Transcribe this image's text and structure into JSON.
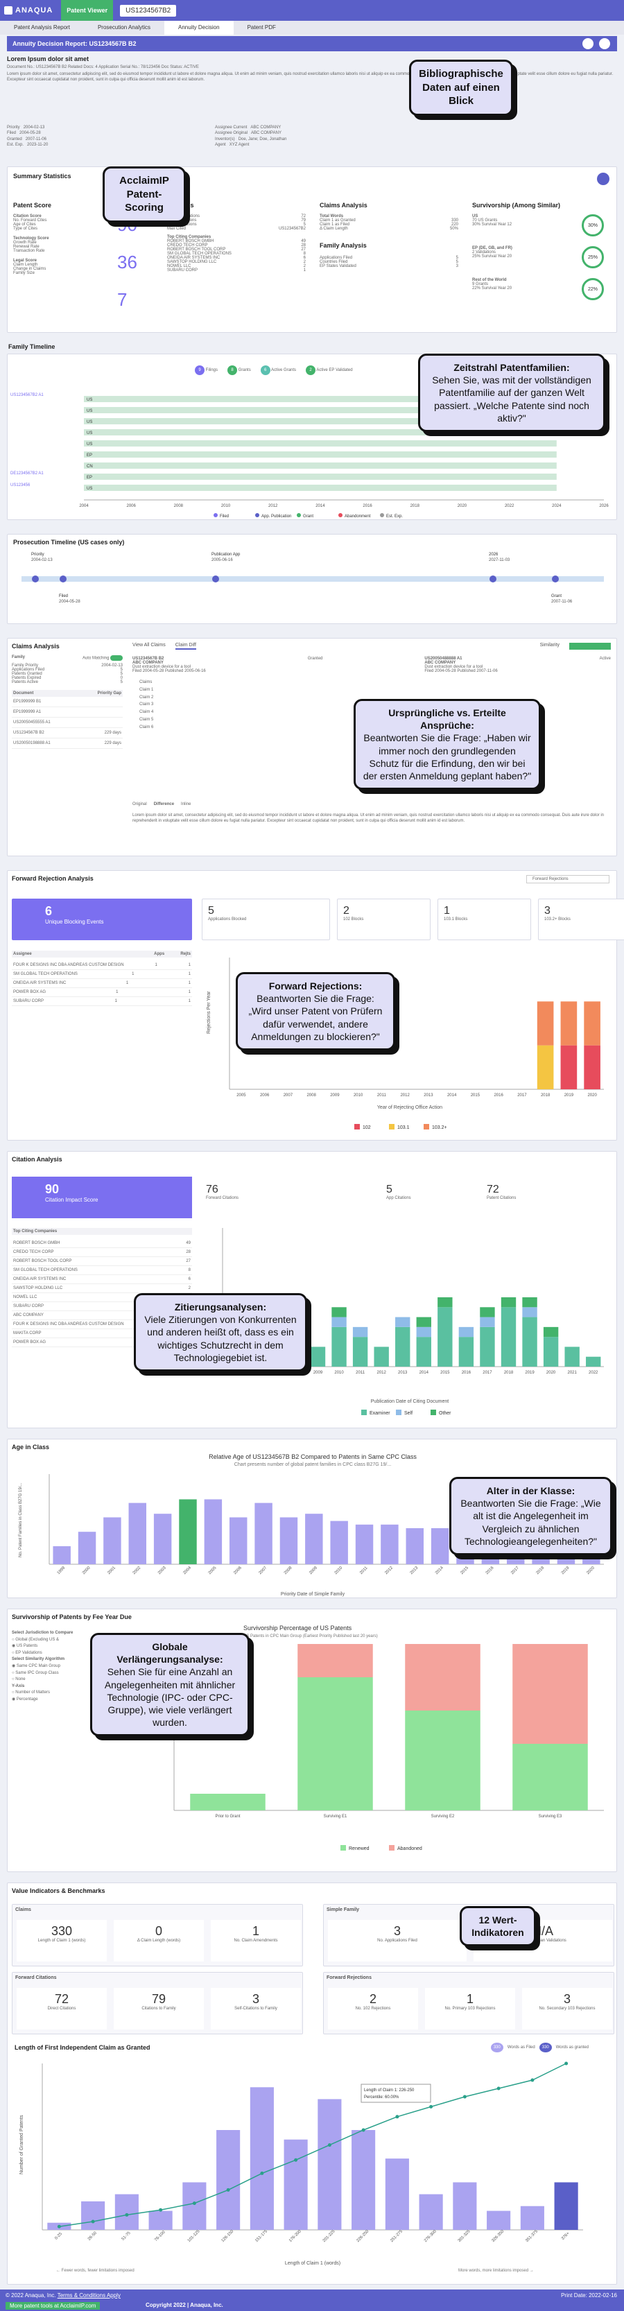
{
  "app": {
    "brand": "ANAQUA",
    "viewer": "Patent Viewer",
    "patent_number": "US1234567B2"
  },
  "tabs": [
    "Patent Analysis Report",
    "Prosecution Analytics",
    "Annuity Decision",
    "Patent PDF"
  ],
  "decision_title": "Annuity Decision Report: US1234567B B2",
  "doc": {
    "title": "Lorem Ipsum dolor sit amet",
    "meta_line": "Document No.: US1234567B B2   Related Docs: 4   Application Serial No.: 78/123456   Doc Status: ACTIVE",
    "abstract": "Lorem ipsum dolor sit amet, consectetur adipiscing elit, sed do eiusmod tempor incididunt ut labore et dolore magna aliqua. Ut enim ad minim veniam, quis nostrud exercitation ullamco laboris nisi ut aliquip ex ea commodo consequat. Duis aute irure dolor in reprehenderit in voluptate velit esse cillum dolore eu fugiat nulla pariatur. Excepteur sint occaecat cupidatat non proident, sunt in culpa qui officia deserunt mollit anim id est laborum.",
    "dates": [
      [
        "Priority",
        "2004-02-13"
      ],
      [
        "Filed",
        "2004-05-28"
      ],
      [
        "Granted",
        "2007-11-06"
      ],
      [
        "Est. Exp.",
        "2023-11-20"
      ]
    ],
    "parties": [
      [
        "Assignee Current",
        "ABC COMPANY"
      ],
      [
        "Assignee Original",
        "ABC COMPANY"
      ],
      [
        "Inventor(s)",
        "Doe, Jane; Doe, Jonathan"
      ],
      [
        "Agent",
        "XYZ Agent"
      ]
    ]
  },
  "summary": {
    "title": "Summary Statistics",
    "patent_score": {
      "title": "Patent Score",
      "citation_label": "Citation Score",
      "citation_value": "90",
      "technology_label": "Technology Score",
      "technology_value": "36",
      "legal_label": "Legal Score",
      "legal_value": "7",
      "citation_rows": [
        "No. Forward Cites",
        "Age of Cites",
        "Type of Cites"
      ],
      "technology_rows": [
        "Growth Rate",
        "Renewal Rate",
        "Transaction Rate"
      ],
      "legal_rows": [
        "Claim Length",
        "Change in Claims",
        "Family Size"
      ]
    },
    "citations": {
      "title": "Citations",
      "rows": [
        [
          "Forward Citations",
          "72"
        ],
        [
          "Patent Citations",
          "79"
        ],
        [
          "Family Citations",
          "5"
        ],
        [
          "Max Cited",
          "US1234567B2"
        ]
      ],
      "top_title": "Top Citing Companies",
      "top": [
        [
          "ROBERT BOSCH GMBH",
          "49"
        ],
        [
          "CREDO TECH CORP",
          "28"
        ],
        [
          "ROBERT BOSCH TOOL CORP",
          "27"
        ],
        [
          "SM GLOBAL TECH OPERATIONS",
          "8"
        ],
        [
          "ONEIDA AIR SYSTEMS INC",
          "6"
        ],
        [
          "SAWSTOP HOLDING LLC",
          "2"
        ],
        [
          "NOWEL LLC",
          "2"
        ],
        [
          "SUBARU CORP",
          "1"
        ]
      ]
    },
    "claims": {
      "title": "Claims Analysis",
      "total_words_label": "Total Words",
      "rows": [
        [
          "Claim 1 as Granted",
          "330"
        ],
        [
          "Claim 1 as Filed",
          "220"
        ],
        [
          "Δ Claim Length",
          "50%"
        ]
      ],
      "family_title": "Family Analysis",
      "family_rows": [
        [
          "Applications Filed",
          "5"
        ],
        [
          "Countries Filed",
          "5"
        ],
        [
          "EP States Validated",
          "3"
        ]
      ]
    },
    "survivorship": {
      "title": "Survivorship (Among Similar)",
      "groups": [
        {
          "name": "US",
          "line1": "70 US Grants",
          "line2": "30% Survival Year 12",
          "pct": "30%"
        },
        {
          "name": "EP (DE, GB, and FR)",
          "line1": "2 Validations",
          "line2": "25% Survival Year 20",
          "pct": "25%"
        },
        {
          "name": "Rest of the World",
          "line1": "9 Grants",
          "line2": "22% Survival Year 20",
          "pct": "22%"
        }
      ]
    }
  },
  "family_timeline": {
    "title": "Family Timeline",
    "legend": [
      [
        "9",
        "Filings"
      ],
      [
        "8",
        "Grants"
      ],
      [
        "6",
        "Active Grants"
      ],
      [
        "2",
        "Active EP Validated"
      ]
    ],
    "years": [
      "2004",
      "2006",
      "2008",
      "2010",
      "2012",
      "2014",
      "2016",
      "2018",
      "2020",
      "2022",
      "2024",
      "2026"
    ],
    "rows": [
      "US",
      "US",
      "US",
      "US",
      "US",
      "EP",
      "CN",
      "EP",
      "US"
    ],
    "left_labels": [
      "US1234567B2 A1",
      "DE1234567B2 A1",
      "US123456"
    ],
    "bottom_legend": [
      "Filed",
      "App. Publication",
      "Grant",
      "Abandonment",
      "Est. Exp."
    ]
  },
  "prosecution": {
    "title": "Prosecution Timeline (US cases only)",
    "events": [
      [
        "Priority",
        "2004-02-13"
      ],
      [
        "Filed",
        "2004-05-28"
      ],
      [
        "Publication App",
        "2005-06-16"
      ],
      [
        "Grant",
        "2007-11-06"
      ],
      [
        "2026",
        "2027-11-03"
      ]
    ]
  },
  "claims_panel": {
    "title": "Claims Analysis",
    "family_label": "Family",
    "auto_matching": "Auto Matching",
    "family_rows": [
      [
        "Family Priority",
        "2004-02-13"
      ],
      [
        "Applications Filed",
        "5"
      ],
      [
        "Patents Granted",
        "5"
      ],
      [
        "Patents Expired",
        "0"
      ],
      [
        "Patents Active",
        "5"
      ]
    ],
    "doc_header": [
      "Document",
      "Priority Gap"
    ],
    "docs": [
      [
        "EP1999999 B1",
        ""
      ],
      [
        "EP1999999 A1",
        ""
      ],
      [
        "US20050455555 A1",
        ""
      ],
      [
        "US1234567B B2",
        "229 days"
      ],
      [
        "US20050198888 A1",
        "229 days"
      ]
    ],
    "view_tabs": [
      "View All Claims",
      "Claim Diff"
    ],
    "similarity": "Similarity",
    "granted": {
      "doc": "US1234567B B2",
      "company": "ABC COMPANY",
      "desc": "Dust extraction device for a tool",
      "filed": "2004-05-28",
      "published": "2005-06-16",
      "label": "Granted"
    },
    "filed": {
      "doc": "US20050488888 A1",
      "company": "ABC COMPANY",
      "desc": "Dust extraction device for a tool",
      "filed": "2004-05-28",
      "published": "2007-11-06",
      "label": "Active"
    },
    "claims": [
      "Claims",
      "Claim 1",
      "Claim 2",
      "Claim 3",
      "Claim 4",
      "Claim 5",
      "Claim 6"
    ],
    "diff_tabs": [
      "Original",
      "Difference",
      "Inline"
    ]
  },
  "forward_rejection": {
    "title": "Forward Rejection Analysis",
    "filter": "Forward Rejections",
    "blocking": {
      "value": "6",
      "label": "Unique Blocking Events"
    },
    "stats": [
      [
        "5",
        "Applications Blocked"
      ],
      [
        "2",
        "102 Blocks"
      ],
      [
        "1",
        "103.1 Blocks"
      ],
      [
        "3",
        "103.2+ Blocks"
      ]
    ],
    "assignees_header": [
      "Assignee",
      "Apps",
      "Rejts"
    ],
    "assignees": [
      [
        "FOUR K DESIGNS INC DBA ANDREAS CUSTOM DESIGN",
        "1",
        "1"
      ],
      [
        "SM GLOBAL TECH OPERATIONS",
        "1",
        "1"
      ],
      [
        "ONEIDA AIR SYSTEMS INC",
        "1",
        "1"
      ],
      [
        "POWER BOX AG",
        "1",
        "1"
      ],
      [
        "SUBARU CORP",
        "1",
        "1"
      ]
    ],
    "ylabel": "Rejections Per Year",
    "xlabel": "Year of Rejecting Office Action",
    "legend": [
      "102",
      "103.1",
      "103.2+"
    ]
  },
  "citation_analysis": {
    "title": "Citation Analysis",
    "impact": {
      "value": "90",
      "label": "Citation Impact Score"
    },
    "stats": [
      [
        "76",
        "Forward Citations"
      ],
      [
        "5",
        "App Citations"
      ],
      [
        "72",
        "Patent Citations"
      ]
    ],
    "top_title": "Top Citing Companies",
    "top": [
      [
        "ROBERT BOSCH GMBH",
        "49"
      ],
      [
        "CREDO TECH CORP",
        "28"
      ],
      [
        "ROBERT BOSCH TOOL CORP",
        "27"
      ],
      [
        "SM GLOBAL TECH OPERATIONS",
        "8"
      ],
      [
        "ONEIDA AIR SYSTEMS INC",
        "6"
      ],
      [
        "SAWSTOP HOLDING LLC",
        "2"
      ],
      [
        "NOWEL LLC",
        "2"
      ],
      [
        "SUBARU CORP",
        "1"
      ],
      [
        "ABC COMPANY",
        "1"
      ],
      [
        "FOUR K DESIGNS INC DBA ANDREAS CUSTOM DESIGN",
        "1"
      ],
      [
        "MAKITA CORP",
        "1"
      ],
      [
        "POWER BOX AG",
        "1"
      ]
    ],
    "xlabel": "Publication Date of Citing Document",
    "legend": [
      "Examiner",
      "Self",
      "Other"
    ]
  },
  "age_in_class": {
    "title": "Age in Class",
    "chart_title": "Relative Age of US1234567B B2 Compared to Patents in Same CPC Class",
    "chart_subtitle": "Chart presents number of global patent families in CPC class B27G 19/...",
    "ylabel": "No. Patent Families in Class B27G 19/...",
    "xlabel": "Priority Date of Simple Family"
  },
  "survivorship_panel": {
    "title": "Survivorship of Patents by Fee Year Due",
    "jurisdiction_label": "Select Jurisdiction to Compare",
    "jurisdiction_opts": [
      "Global (Excluding US &",
      "US Patents",
      "EP Validations"
    ],
    "algo_label": "Select Similarity Algorithm",
    "algo_opts": [
      "Same CPC Main Group",
      "Same IPC Group Class",
      "None"
    ],
    "yaxis_label": "Y-Axis",
    "yaxis_opts": [
      "Number of Matters",
      "Percentage"
    ],
    "chart_title": "Survivorship Percentage of US Patents",
    "chart_subtitle": "US Patents in CPC Main Group (Earliest Priority Published last 20 years)",
    "columns": [
      "Prior to Grant",
      "Surviving E1",
      "Surviving E2",
      "Surviving E3"
    ],
    "legend": [
      "Renewed",
      "Abandoned"
    ]
  },
  "value_indicators": {
    "title": "Value Indicators & Benchmarks",
    "claims": {
      "title": "Claims",
      "items": [
        [
          "330",
          "Length of Claim 1 (words)"
        ],
        [
          "0",
          "Δ Claim Length (words)"
        ],
        [
          "1",
          "No. Claim Amendments"
        ]
      ]
    },
    "simple_family": {
      "title": "Simple Family",
      "items": [
        [
          "3",
          "No. Applications Filed"
        ],
        [
          "N/A",
          "No. European Validations"
        ]
      ]
    },
    "forward_citations": {
      "title": "Forward Citations",
      "items": [
        [
          "72",
          "Direct Citations"
        ],
        [
          "79",
          "Citations to Family"
        ],
        [
          "3",
          "Self-Citations to Family"
        ]
      ]
    },
    "forward_rejections": {
      "title": "Forward Rejections",
      "items": [
        [
          "2",
          "No. 102 Rejections"
        ],
        [
          "1",
          "No. Primary 103 Rejections"
        ],
        [
          "3",
          "No. Secondary 103 Rejections"
        ]
      ]
    }
  },
  "length_chart": {
    "title": "Length of First Independent Claim as Granted",
    "badge1": "330",
    "badge1_label": "Words as Filed",
    "badge2": "330",
    "badge2_label": "Words as granted",
    "tooltip_line1": "Length of Claim 1:",
    "tooltip_val1": "226-250",
    "tooltip_line2": "Percentile:",
    "tooltip_val2": "60.00%",
    "xlabel": "Length of Claim 1 (words)",
    "ylabel": "Number of Granted Patents",
    "left_note": "← Fewer words, fewer limitations imposed",
    "right_note": "More words, more limitations imposed →"
  },
  "footer": {
    "copyright": "© 2022 Anaqua, Inc.",
    "terms": "Terms & Conditions Apply",
    "print_date": "Print Date: 2022-02-16",
    "more": "More patent tools at AcclaimIP.com",
    "copy2": "Copyright 2022 | Anaqua, Inc."
  },
  "callouts": {
    "biblio": "Bibliographische Daten auf einen Blick",
    "acclaim": "AcclaimIP Patent-Scoring",
    "family_title": "Zeitstrahl Patentfamilien:",
    "family_body": "Sehen Sie, was mit der vollständigen Patentfamilie auf der ganzen Welt passiert. „Welche Patente sind noch aktiv?\"",
    "claims_title": "Ursprüngliche vs. Erteilte Ansprüche:",
    "claims_body": "Beantworten Sie die Frage: „Haben wir immer noch den grundlegenden Schutz für die Erfindung, den wir bei der ersten Anmeldung geplant haben?\"",
    "fr_title": "Forward Rejections:",
    "fr_body": "Beantworten Sie die Frage: „Wird unser Patent von Prüfern dafür verwendet, andere Anmeldungen zu blockieren?\"",
    "cit_title": "Zitierungsanalysen:",
    "cit_body": "Viele Zitierungen von Konkurrenten und anderen heißt oft, dass es ein wichtiges Schutzrecht in dem Technologiegebiet ist.",
    "age_title": "Alter in der Klasse:",
    "age_body": "Beantworten Sie die Frage: „Wie alt ist die Angelegenheit im Vergleich zu ähnlichen Technologieangelegenheiten?\"",
    "glob_title": "Globale Verlängerungsanalyse:",
    "glob_body": "Sehen Sie für eine Anzahl an Angelegenheiten mit ähnlicher Technologie (IPC- oder CPC-Gruppe), wie viele verlängert wurden.",
    "twelve": "12 Wert-Indikatoren"
  },
  "chart_data": [
    {
      "type": "bar",
      "title": "",
      "categories": [
        "2005",
        "2006",
        "2007",
        "2008",
        "2009",
        "2010",
        "2011",
        "2012",
        "2013",
        "2014",
        "2015",
        "2016",
        "2017",
        "2018",
        "2019",
        "2020"
      ],
      "series": [
        {
          "name": "102",
          "values": [
            0,
            0,
            0,
            0,
            0,
            0,
            0,
            0,
            0,
            0,
            0,
            0,
            0,
            0,
            1,
            1
          ]
        },
        {
          "name": "103.1",
          "values": [
            0,
            0,
            0,
            0,
            0,
            0,
            0,
            0,
            0,
            0,
            0,
            0,
            0,
            1,
            0,
            0
          ]
        },
        {
          "name": "103.2+",
          "values": [
            0,
            0,
            0,
            0,
            0,
            0,
            0,
            0,
            0,
            0,
            0,
            0,
            0,
            1,
            1,
            1
          ]
        }
      ],
      "xlabel": "Year of Rejecting Office Action",
      "ylabel": "Rejections Per Year",
      "ylim": [
        0,
        3
      ]
    },
    {
      "type": "bar",
      "title": "",
      "categories": [
        "2005",
        "2006",
        "2007",
        "2008",
        "2009",
        "2010",
        "2011",
        "2012",
        "2013",
        "2014",
        "2015",
        "2016",
        "2017",
        "2018",
        "2019",
        "2020",
        "2021",
        "2022"
      ],
      "series": [
        {
          "name": "Examiner",
          "values": [
            0,
            0,
            2,
            1,
            2,
            4,
            3,
            2,
            4,
            3,
            6,
            3,
            4,
            6,
            5,
            3,
            2,
            1
          ]
        },
        {
          "name": "Self",
          "values": [
            0,
            0,
            0,
            0,
            0,
            1,
            1,
            0,
            1,
            1,
            0,
            1,
            1,
            0,
            1,
            0,
            0,
            0
          ]
        },
        {
          "name": "Other",
          "values": [
            0,
            0,
            1,
            0,
            0,
            1,
            0,
            0,
            0,
            1,
            1,
            0,
            1,
            1,
            1,
            1,
            0,
            0
          ]
        }
      ],
      "xlabel": "Publication Date of Citing Document",
      "ylim": [
        0,
        14
      ]
    },
    {
      "type": "bar",
      "title": "Relative Age of US1234567B B2 Compared to Patents in Same CPC Class",
      "categories": [
        "1999",
        "2000",
        "2001",
        "2002",
        "2003",
        "2004",
        "2005",
        "2006",
        "2007",
        "2008",
        "2009",
        "2010",
        "2011",
        "2012",
        "2013",
        "2014",
        "2015",
        "2016",
        "2017",
        "2018",
        "2019",
        "2020"
      ],
      "values": [
        5,
        9,
        13,
        17,
        14,
        18,
        18,
        13,
        17,
        13,
        14,
        12,
        11,
        11,
        10,
        10,
        13,
        13,
        12,
        12,
        9,
        6
      ],
      "highlight_index": 5,
      "xlabel": "Priority Date of Simple Family",
      "ylabel": "No. Patent Families in Class B27G 19/...",
      "ylim": [
        0,
        25
      ]
    },
    {
      "type": "bar",
      "title": "Survivorship Percentage of US Patents",
      "categories": [
        "Prior to Grant",
        "Surviving E1",
        "Surviving E2",
        "Surviving E3"
      ],
      "series": [
        {
          "name": "Renewed",
          "values": [
            10,
            80,
            60,
            40
          ]
        },
        {
          "name": "Abandoned",
          "values": [
            0,
            20,
            40,
            60
          ]
        }
      ],
      "ylim": [
        0,
        100
      ]
    },
    {
      "type": "bar",
      "title": "Length of First Independent Claim as Granted",
      "categories": [
        "0-25",
        "26-50",
        "51-75",
        "76-100",
        "101-125",
        "126-150",
        "151-175",
        "176-200",
        "201-225",
        "226-250",
        "251-275",
        "276-300",
        "301-325",
        "326-350",
        "351-375",
        "376+"
      ],
      "values": [
        3,
        12,
        15,
        8,
        20,
        42,
        60,
        38,
        55,
        42,
        30,
        15,
        20,
        8,
        10,
        20
      ],
      "highlight_index": 15,
      "line": [
        2,
        5,
        9,
        12,
        16,
        24,
        34,
        42,
        51,
        60,
        68,
        74,
        80,
        85,
        90,
        100
      ],
      "xlabel": "Length of Claim 1 (words)",
      "ylabel": "Number of Granted Patents",
      "ylim": [
        0,
        70
      ]
    }
  ]
}
